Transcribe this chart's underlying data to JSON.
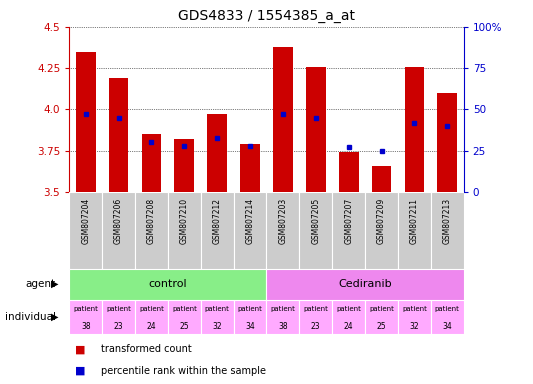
{
  "title": "GDS4833 / 1554385_a_at",
  "samples": [
    "GSM807204",
    "GSM807206",
    "GSM807208",
    "GSM807210",
    "GSM807212",
    "GSM807214",
    "GSM807203",
    "GSM807205",
    "GSM807207",
    "GSM807209",
    "GSM807211",
    "GSM807213"
  ],
  "bar_values": [
    4.35,
    4.19,
    3.85,
    3.82,
    3.97,
    3.79,
    4.38,
    4.26,
    3.74,
    3.66,
    4.26,
    4.1
  ],
  "percentile_values": [
    47,
    45,
    30,
    28,
    33,
    28,
    47,
    45,
    27,
    25,
    42,
    40
  ],
  "ylim_left": [
    3.5,
    4.5
  ],
  "ylim_right": [
    0,
    100
  ],
  "yticks_left": [
    3.5,
    3.75,
    4.0,
    4.25,
    4.5
  ],
  "yticks_right": [
    0,
    25,
    50,
    75,
    100
  ],
  "ytick_labels_right": [
    "0",
    "25",
    "50",
    "75",
    "100%"
  ],
  "bar_color": "#cc0000",
  "percentile_color": "#0000cc",
  "agent_groups": [
    {
      "label": "control",
      "start": 0,
      "end": 5,
      "color": "#88ee88"
    },
    {
      "label": "Cediranib",
      "start": 6,
      "end": 11,
      "color": "#ee88ee"
    }
  ],
  "individual_labels": [
    "patient\n38",
    "patient\n23",
    "patient\n24",
    "patient\n25",
    "patient\n32",
    "patient\n34",
    "patient\n38",
    "patient\n23",
    "patient\n24",
    "patient\n25",
    "patient\n32",
    "patient\n34"
  ],
  "individual_bg_color": "#ffaaff",
  "gsm_bg_color": "#cccccc",
  "agent_row_label": "agent",
  "individual_row_label": "individual",
  "legend_bar_label": "transformed count",
  "legend_pct_label": "percentile rank within the sample",
  "title_fontsize": 10,
  "axis_label_color_left": "#cc0000",
  "axis_label_color_right": "#0000cc"
}
